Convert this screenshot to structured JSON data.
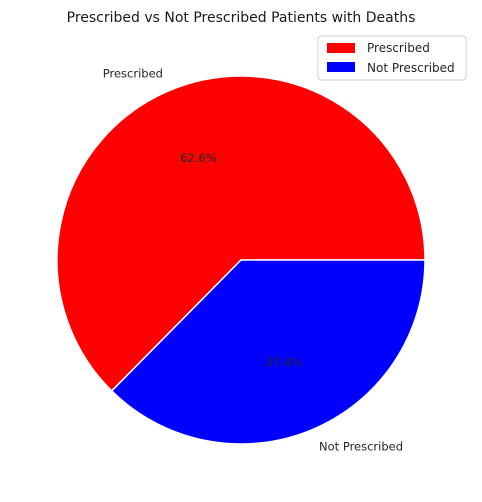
{
  "chart_data": {
    "type": "pie",
    "title": "Prescribed vs Not Prescribed Patients with Deaths",
    "slices": [
      {
        "label": "Prescribed",
        "value": 62.6,
        "pct_label": "62.6%",
        "color": "#ff0000"
      },
      {
        "label": "Not Prescribed",
        "value": 37.4,
        "pct_label": "37.4%",
        "color": "#0000ff"
      }
    ],
    "start_angle_deg": 0,
    "direction": "counterclockwise",
    "legend": {
      "placement": "top-right",
      "entries": [
        "Prescribed",
        "Not Prescribed"
      ]
    }
  }
}
